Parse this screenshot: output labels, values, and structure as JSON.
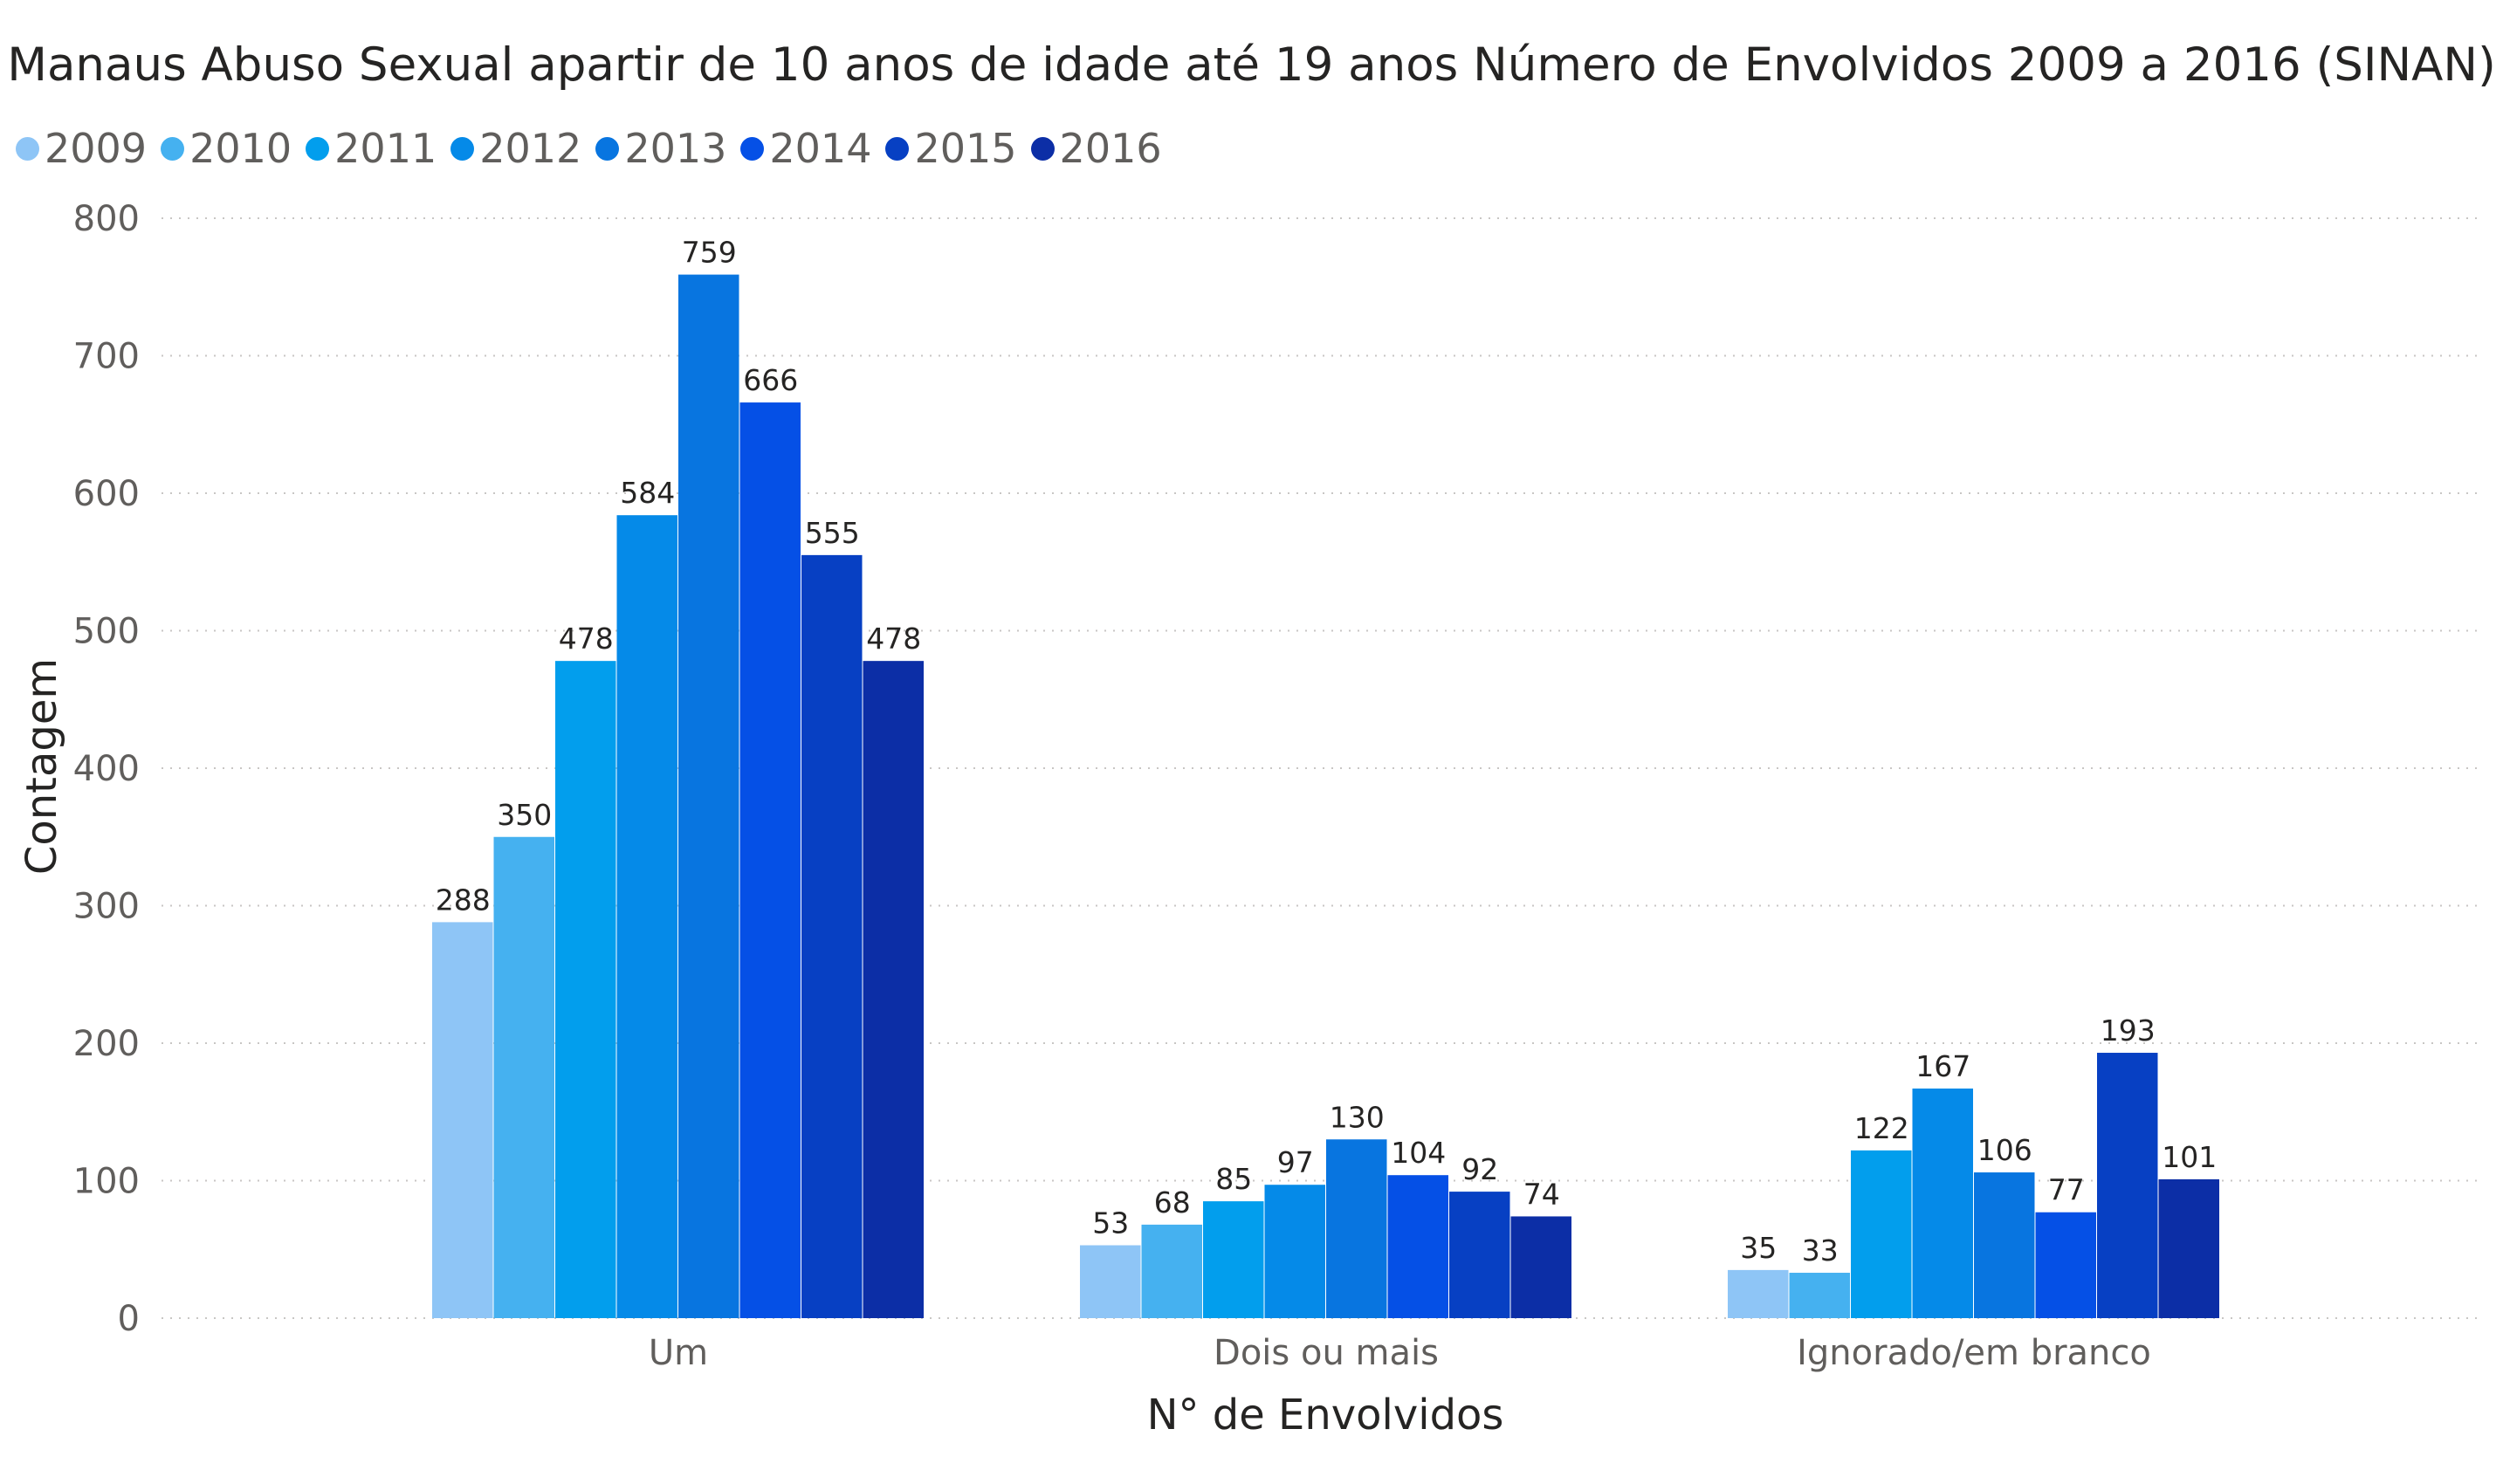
{
  "chart_data": {
    "type": "bar",
    "title": "Manaus Abuso Sexual apartir de 10 anos de idade até 19 anos Número de Envolvidos 2009 a 2016 (SINAN)",
    "xlabel": "N° de Envolvidos",
    "ylabel": "Contagem",
    "categories": [
      "Um",
      "Dois ou mais",
      "Ignorado/em branco"
    ],
    "ylim": [
      0,
      800
    ],
    "yticks": [
      "0",
      "100",
      "200",
      "300",
      "400",
      "500",
      "600",
      "700",
      "800"
    ],
    "grid": "horizontal-dotted",
    "legend_position": "top-left",
    "series": [
      {
        "name": "2009",
        "color": "#8ec5f6",
        "values": [
          288,
          53,
          35
        ]
      },
      {
        "name": "2010",
        "color": "#45b1f0",
        "values": [
          350,
          68,
          33
        ]
      },
      {
        "name": "2011",
        "color": "#029eed",
        "values": [
          478,
          85,
          122
        ]
      },
      {
        "name": "2012",
        "color": "#058ae8",
        "values": [
          584,
          97,
          167
        ]
      },
      {
        "name": "2013",
        "color": "#0875e0",
        "values": [
          759,
          130,
          106
        ]
      },
      {
        "name": "2014",
        "color": "#0550e6",
        "values": [
          666,
          104,
          77
        ]
      },
      {
        "name": "2015",
        "color": "#0740c3",
        "values": [
          555,
          92,
          193
        ]
      },
      {
        "name": "2016",
        "color": "#0c2ea6",
        "values": [
          478,
          74,
          101
        ]
      }
    ]
  }
}
